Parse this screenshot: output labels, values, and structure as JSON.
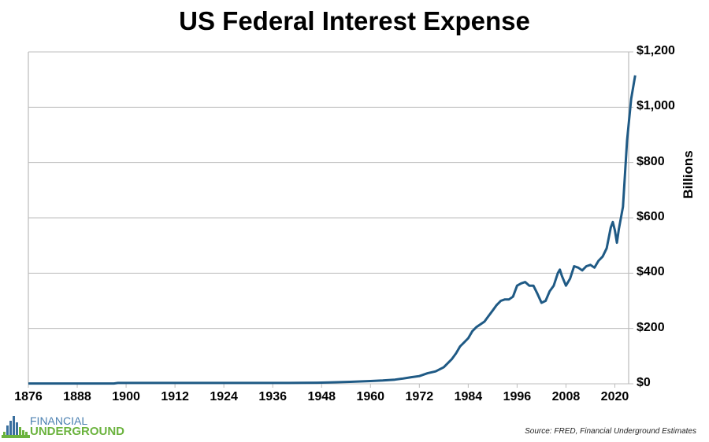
{
  "chart_data": {
    "type": "line",
    "title": "US Federal Interest Expense",
    "xlabel": "",
    "ylabel": "Billions",
    "xlim": [
      1876,
      2026
    ],
    "ylim": [
      0,
      1200
    ],
    "grid": true,
    "x_ticks": [
      "1876",
      "1888",
      "1900",
      "1912",
      "1924",
      "1936",
      "1948",
      "1960",
      "1972",
      "1984",
      "1996",
      "2008",
      "2020"
    ],
    "y_ticks": [
      "$0",
      "$200",
      "$400",
      "$600",
      "$800",
      "$1,000",
      "$1,200"
    ],
    "y_tick_values": [
      0,
      200,
      400,
      600,
      800,
      1000,
      1200
    ],
    "series": [
      {
        "name": "US Federal Interest Expense",
        "color": "#1f5a85",
        "points": [
          [
            1876,
            1
          ],
          [
            1890,
            1
          ],
          [
            1897,
            1
          ],
          [
            1898,
            3
          ],
          [
            1920,
            3
          ],
          [
            1940,
            3
          ],
          [
            1947,
            4
          ],
          [
            1950,
            5
          ],
          [
            1955,
            7
          ],
          [
            1960,
            10
          ],
          [
            1963,
            12
          ],
          [
            1966,
            15
          ],
          [
            1968,
            19
          ],
          [
            1970,
            24
          ],
          [
            1972,
            28
          ],
          [
            1974,
            38
          ],
          [
            1976,
            45
          ],
          [
            1978,
            60
          ],
          [
            1980,
            90
          ],
          [
            1981,
            110
          ],
          [
            1982,
            135
          ],
          [
            1983,
            150
          ],
          [
            1984,
            165
          ],
          [
            1985,
            190
          ],
          [
            1986,
            205
          ],
          [
            1987,
            215
          ],
          [
            1988,
            225
          ],
          [
            1989,
            245
          ],
          [
            1990,
            265
          ],
          [
            1991,
            285
          ],
          [
            1992,
            300
          ],
          [
            1993,
            305
          ],
          [
            1994,
            305
          ],
          [
            1995,
            315
          ],
          [
            1996,
            355
          ],
          [
            1997,
            363
          ],
          [
            1998,
            368
          ],
          [
            1999,
            355
          ],
          [
            2000,
            355
          ],
          [
            2001,
            325
          ],
          [
            2002,
            293
          ],
          [
            2003,
            300
          ],
          [
            2004,
            335
          ],
          [
            2005,
            355
          ],
          [
            2006,
            400
          ],
          [
            2006.5,
            413
          ],
          [
            2007,
            390
          ],
          [
            2008,
            355
          ],
          [
            2009,
            380
          ],
          [
            2010,
            425
          ],
          [
            2011,
            420
          ],
          [
            2012,
            410
          ],
          [
            2013,
            425
          ],
          [
            2014,
            430
          ],
          [
            2015,
            420
          ],
          [
            2016,
            445
          ],
          [
            2017,
            460
          ],
          [
            2018,
            490
          ],
          [
            2019,
            565
          ],
          [
            2019.5,
            585
          ],
          [
            2020,
            555
          ],
          [
            2020.5,
            510
          ],
          [
            2021,
            560
          ],
          [
            2022,
            640
          ],
          [
            2023,
            880
          ],
          [
            2024,
            1030
          ],
          [
            2025,
            1115
          ]
        ]
      }
    ]
  },
  "footer": {
    "source": "Source: FRED, Financial Underground Estimates",
    "logo_top": "FINANCIAL",
    "logo_bottom": "UNDERGROUND"
  }
}
